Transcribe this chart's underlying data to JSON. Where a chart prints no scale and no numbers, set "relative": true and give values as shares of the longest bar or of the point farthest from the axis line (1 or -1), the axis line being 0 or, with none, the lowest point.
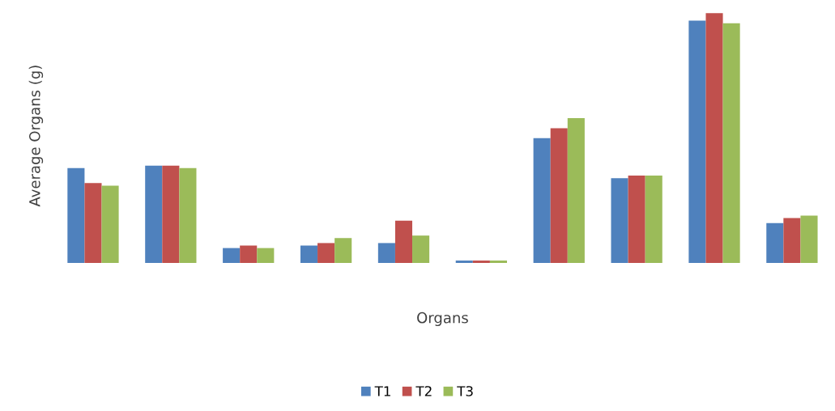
{
  "chart_data": {
    "type": "bar",
    "relative": true,
    "xlabel": "Organs",
    "ylabel": "Average Organs (g)",
    "categories": [
      null,
      null,
      null,
      null,
      null,
      null,
      null,
      null,
      null,
      null
    ],
    "series": [
      {
        "name": "T1",
        "color": "#4f81bd",
        "values": [
          0.38,
          0.39,
          0.06,
          0.07,
          0.08,
          0.01,
          0.5,
          0.34,
          0.97,
          0.16
        ]
      },
      {
        "name": "T2",
        "color": "#c0504d",
        "values": [
          0.32,
          0.39,
          0.07,
          0.08,
          0.17,
          0.01,
          0.54,
          0.35,
          1,
          0.18
        ]
      },
      {
        "name": "T3",
        "color": "#9bbb59",
        "values": [
          0.31,
          0.38,
          0.06,
          0.1,
          0.11,
          0.01,
          0.58,
          0.35,
          0.96,
          0.19
        ]
      }
    ],
    "legend": "bottom",
    "grid": false
  }
}
